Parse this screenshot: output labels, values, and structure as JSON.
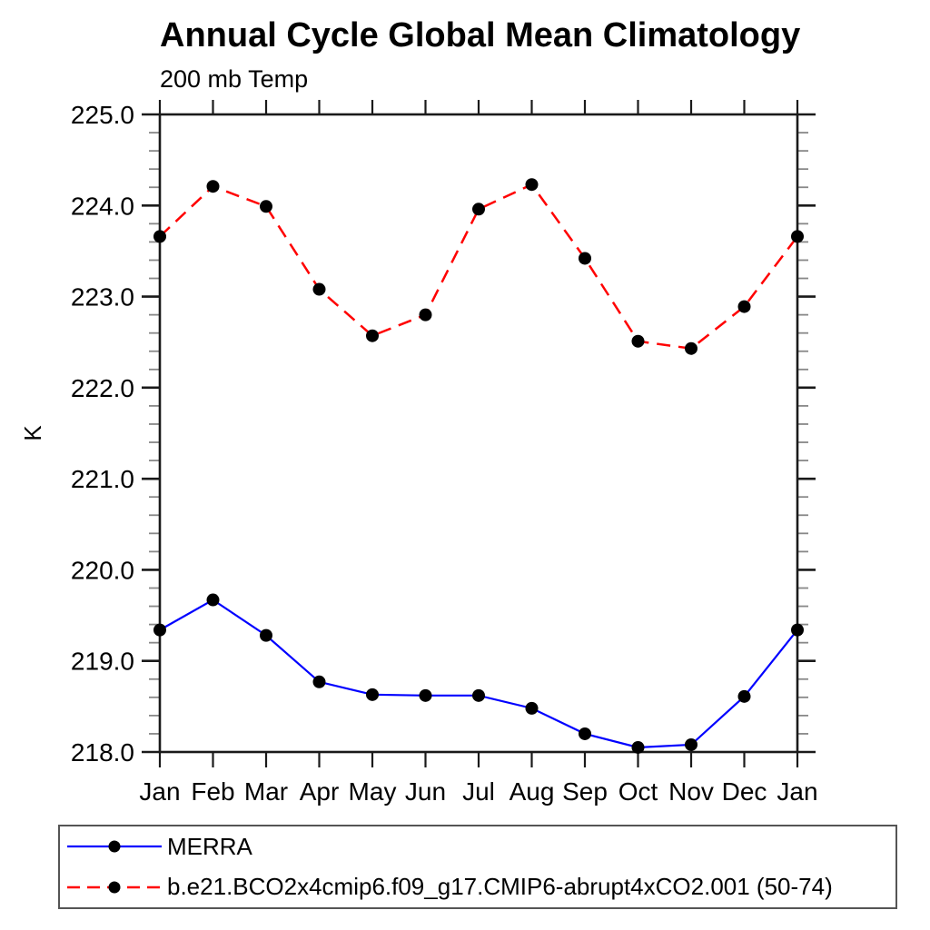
{
  "header": {
    "title": "Annual Cycle Global Mean Climatology",
    "subtitle": "200 mb Temp"
  },
  "chart_data": {
    "type": "line",
    "title": "Annual Cycle Global Mean Climatology",
    "subtitle": "200 mb Temp",
    "xlabel": "",
    "ylabel": "K",
    "categories": [
      "Jan",
      "Feb",
      "Mar",
      "Apr",
      "May",
      "Jun",
      "Jul",
      "Aug",
      "Sep",
      "Oct",
      "Nov",
      "Dec",
      "Jan"
    ],
    "ylim": [
      218.0,
      225.0
    ],
    "ytick_labels": [
      "225.0",
      "224.0",
      "223.0",
      "222.0",
      "221.0",
      "220.0",
      "219.0",
      "218.0"
    ],
    "ytick_interval": 1.0,
    "minor_tick_interval": 0.2,
    "grid": false,
    "legend_position": "bottom",
    "axis_color": "#1a1a1a",
    "minor_tick_color": "#888888",
    "marker_color": "#000000",
    "series": [
      {
        "name": "MERRA",
        "color": "#0000ff",
        "style": "solid",
        "marker": "filled-circle",
        "values": [
          219.34,
          219.67,
          219.28,
          218.77,
          218.63,
          218.62,
          218.62,
          218.48,
          218.2,
          218.05,
          218.08,
          218.61,
          219.34
        ]
      },
      {
        "name": "b.e21.BCO2x4cmip6.f09_g17.CMIP6-abrupt4xCO2.001 (50-74)",
        "color": "#ff0000",
        "style": "dashed",
        "marker": "filled-circle",
        "values": [
          223.66,
          224.21,
          223.99,
          223.08,
          222.57,
          222.8,
          223.96,
          224.23,
          223.42,
          222.51,
          222.43,
          222.89,
          223.66
        ]
      }
    ]
  }
}
